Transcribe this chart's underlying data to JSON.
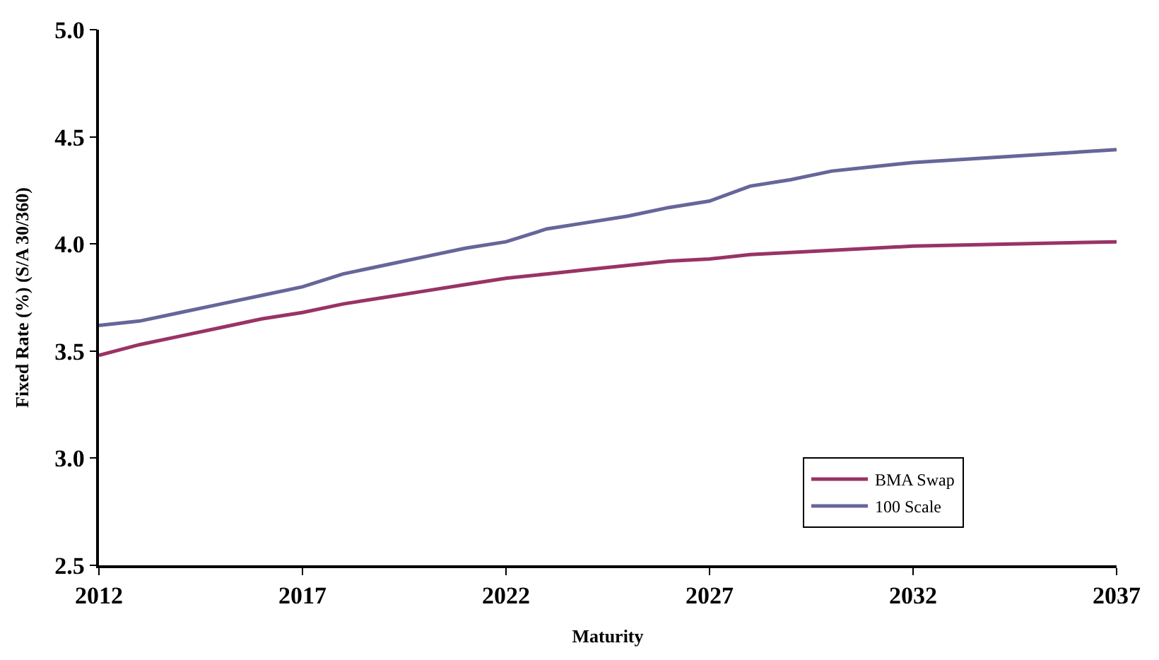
{
  "chart_data": {
    "type": "line",
    "xlabel": "Maturity",
    "ylabel": "Fixed Rate (%) (S/A 30/360)",
    "xlim": [
      2012,
      2037
    ],
    "xticks": [
      2012,
      2017,
      2022,
      2027,
      2032,
      2037
    ],
    "ylim": [
      2.5,
      5.0
    ],
    "yticks": [
      {
        "value": 2.5,
        "label": "2.5"
      },
      {
        "value": 3.0,
        "label": "3.0"
      },
      {
        "value": 3.5,
        "label": "3.5"
      },
      {
        "value": 4.0,
        "label": "4.0"
      },
      {
        "value": 4.5,
        "label": "4.5"
      },
      {
        "value": 5.0,
        "label": "5.0"
      }
    ],
    "grid": false,
    "legend": "bottom right",
    "marker": "none",
    "line_style": "solid",
    "x": [
      2012,
      2013,
      2014,
      2015,
      2016,
      2017,
      2018,
      2019,
      2020,
      2021,
      2022,
      2023,
      2024,
      2025,
      2026,
      2027,
      2028,
      2029,
      2030,
      2031,
      2032,
      2037
    ],
    "series": [
      {
        "name": "BMA Swap",
        "color": "#993366",
        "values": [
          3.48,
          3.53,
          3.57,
          3.61,
          3.65,
          3.68,
          3.72,
          3.75,
          3.78,
          3.81,
          3.84,
          3.86,
          3.88,
          3.9,
          3.92,
          3.93,
          3.95,
          3.96,
          3.97,
          3.98,
          3.99,
          4.01
        ]
      },
      {
        "name": "100 Scale",
        "color": "#666699",
        "values": [
          3.62,
          3.64,
          3.68,
          3.72,
          3.76,
          3.8,
          3.86,
          3.9,
          3.94,
          3.98,
          4.01,
          4.07,
          4.1,
          4.13,
          4.17,
          4.2,
          4.27,
          4.3,
          4.34,
          4.36,
          4.38,
          4.44
        ]
      }
    ]
  }
}
